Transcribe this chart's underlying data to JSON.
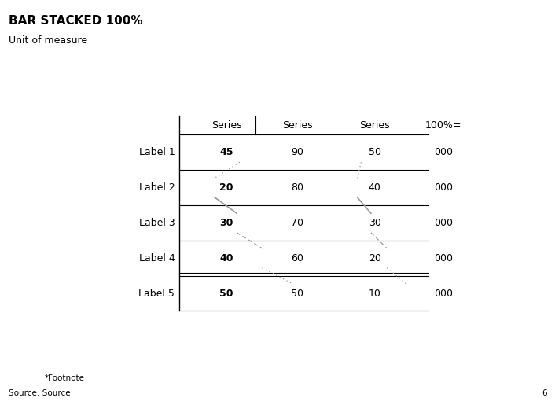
{
  "title": "BAR STACKED 100%",
  "subtitle": "Unit of measure",
  "footnote": "*Footnote",
  "source": "Source: Source",
  "page_number": "6",
  "col_headers": [
    "Series",
    "Series",
    "Series",
    "100%="
  ],
  "row_labels": [
    "Label 1",
    "Label 2",
    "Label 3",
    "Label 4",
    "Label 5"
  ],
  "values": [
    [
      45,
      90,
      50,
      "000"
    ],
    [
      20,
      80,
      40,
      "000"
    ],
    [
      30,
      70,
      30,
      "000"
    ],
    [
      40,
      60,
      20,
      "000"
    ],
    [
      50,
      50,
      10,
      "000"
    ]
  ],
  "background_color": "#ffffff",
  "text_color": "#000000",
  "line_color": "#000000",
  "diagonal_color": "#999999",
  "title_fontsize": 11,
  "subtitle_fontsize": 9,
  "cell_fontsize": 9,
  "header_fontsize": 9,
  "label_fontsize": 9,
  "footnote_fontsize": 7.5,
  "col1_bold": true,
  "diag_styles": [
    "dotted",
    "solid",
    "dashed",
    "dotted"
  ],
  "diag_linewidths": [
    0.9,
    1.2,
    0.9,
    0.9
  ],
  "row4_double_line": true
}
